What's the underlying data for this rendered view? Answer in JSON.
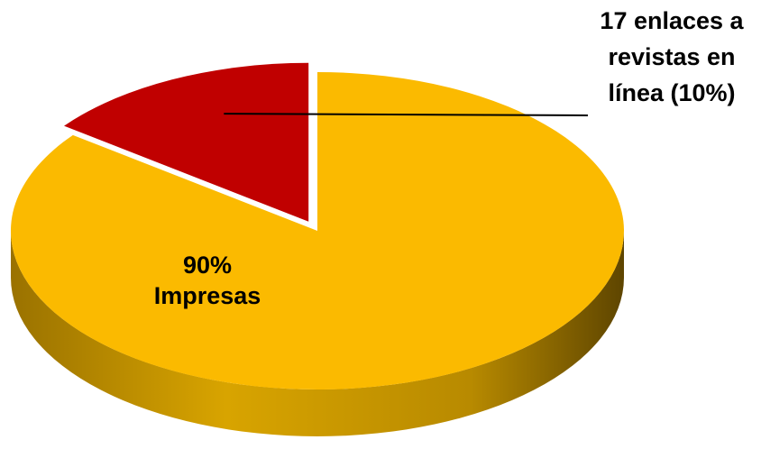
{
  "chart_data": {
    "type": "pie",
    "style": "3d-exploded",
    "title": "",
    "slices": [
      {
        "value": 90,
        "label_lines": [
          "90%",
          "Impresas"
        ],
        "color": "#FBBA00",
        "color_side": "#8A6600"
      },
      {
        "value": 10,
        "label_lines": [
          "17 enlaces a",
          "revistas en",
          "línea (10%)"
        ],
        "color": "#C00000",
        "color_side": "#6E0000",
        "exploded": true
      }
    ],
    "leader_line": true,
    "legend": "none"
  }
}
